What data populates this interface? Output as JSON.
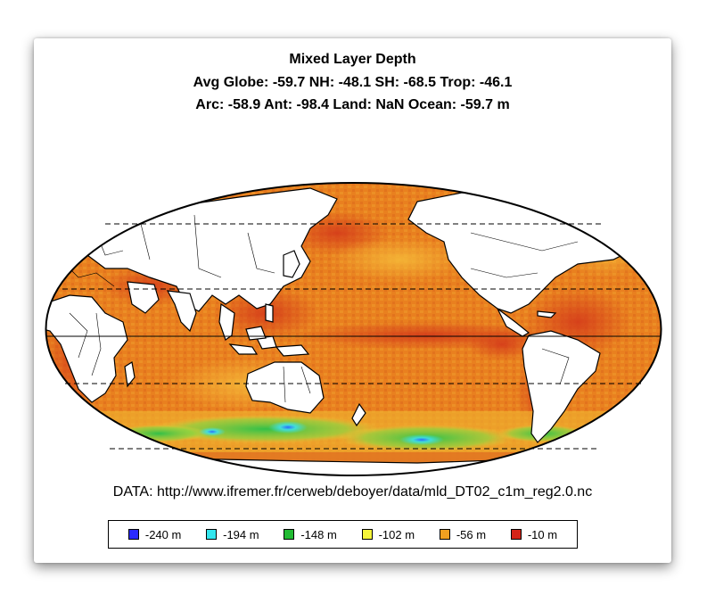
{
  "figure": {
    "title": "Mixed Layer Depth",
    "stats_line_1": "Avg Globe: -59.7  NH: -48.1  SH: -68.5  Trop: -46.1",
    "stats_line_2": "Arc: -58.9  Ant: -98.4  Land: NaN Ocean: -59.7 m",
    "source": "DATA: http://www.ifremer.fr/cerweb/deboyer/data/mld_DT02_c1m_reg2.0.nc"
  },
  "legend": [
    {
      "label": "-240 m",
      "color": "#2a2aff"
    },
    {
      "label": "-194 m",
      "color": "#33e6ee"
    },
    {
      "label": "-148 m",
      "color": "#22bb33"
    },
    {
      "label": "-102 m",
      "color": "#f5f53a"
    },
    {
      "label": "-56 m",
      "color": "#f0a020"
    },
    {
      "label": "-10 m",
      "color": "#d42418"
    }
  ],
  "map": {
    "projection": "mollweide",
    "central_meridian": "pacific",
    "colors": {
      "ocean_deep_orange": "#e8781e",
      "ocean_mid": "#ef9428",
      "ocean_shallow_red": "#d43a1a",
      "southern_ocean_yellow": "#f3d23a",
      "southern_ocean_green": "#3fbf4a",
      "southern_ocean_cyan": "#3fe0e8",
      "land": "#ffffff",
      "coast": "#000000"
    },
    "dashed_latitudes": [
      "60N",
      "23.5N",
      "23.5S",
      "60S"
    ],
    "solid_latitudes": [
      "0"
    ]
  }
}
